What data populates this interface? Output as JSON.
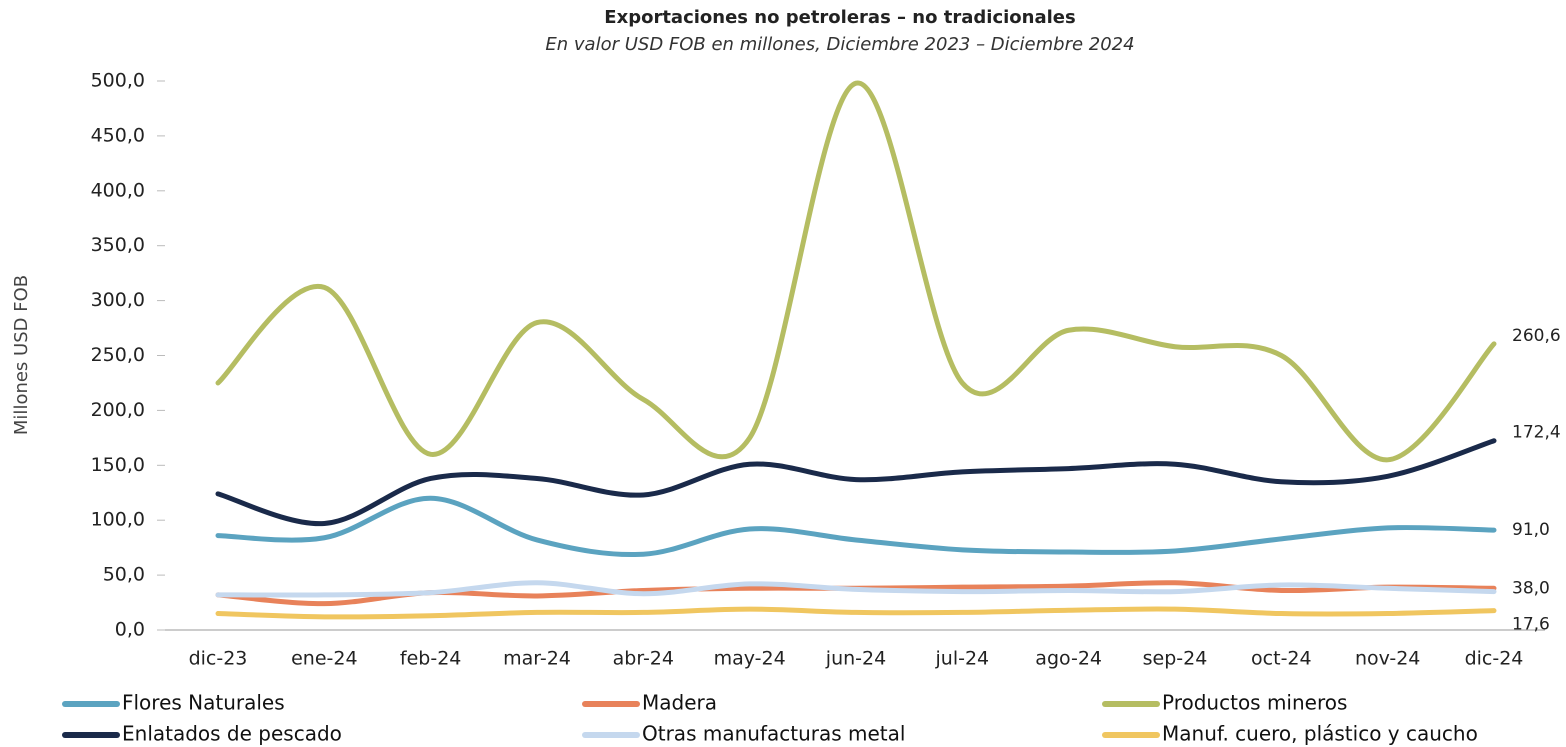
{
  "chart_data": {
    "type": "line",
    "title": "Exportaciones no petroleras – no tradicionales",
    "subtitle": "En valor USD FOB en millones, Diciembre 2023 – Diciembre 2024",
    "y_label": "Millones USD FOB",
    "categories": [
      "dic-23",
      "ene-24",
      "feb-24",
      "mar-24",
      "abr-24",
      "may-24",
      "jun-24",
      "jul-24",
      "ago-24",
      "sep-24",
      "oct-24",
      "nov-24",
      "dic-24"
    ],
    "series": [
      {
        "name": "Flores Naturales",
        "color": "#5ba3c0",
        "values": [
          86,
          84,
          120,
          82,
          69,
          92,
          82,
          73,
          71,
          72,
          83,
          93,
          91.0
        ],
        "value_labels": [
          null,
          null,
          null,
          null,
          null,
          null,
          null,
          null,
          null,
          null,
          null,
          null,
          "91,0"
        ]
      },
      {
        "name": "Madera",
        "color": "#e8825a",
        "values": [
          32,
          24,
          34,
          31,
          36,
          38,
          38,
          39,
          40,
          43,
          36,
          39,
          38.0
        ],
        "value_labels": [
          null,
          null,
          null,
          null,
          null,
          null,
          null,
          null,
          null,
          null,
          null,
          null,
          "38,0"
        ]
      },
      {
        "name": "Productos mineros",
        "color": "#b5bd62",
        "values": [
          225,
          312,
          160,
          280,
          210,
          175,
          498,
          225,
          273,
          258,
          250,
          155,
          260.6
        ],
        "value_labels": [
          null,
          null,
          null,
          null,
          null,
          null,
          null,
          null,
          null,
          null,
          null,
          null,
          "260,6"
        ]
      },
      {
        "name": "Enlatados de pescado",
        "color": "#1a2a4a",
        "values": [
          124,
          97,
          138,
          138,
          123,
          151,
          137,
          144,
          147,
          151,
          135,
          140,
          172.4
        ],
        "value_labels": [
          null,
          null,
          null,
          null,
          null,
          null,
          null,
          null,
          null,
          null,
          null,
          null,
          "172,4"
        ]
      },
      {
        "name": "Otras manufacturas metal",
        "color": "#c5d8ee",
        "values": [
          32,
          32,
          34,
          43,
          33,
          42,
          37,
          35,
          36,
          35,
          41,
          38,
          35
        ]
      },
      {
        "name": "Manuf. cuero, plástico y caucho",
        "color": "#f0c660",
        "values": [
          15,
          12,
          13,
          16,
          16,
          19,
          16,
          16,
          18,
          19,
          15,
          15,
          17.6
        ],
        "value_labels": [
          null,
          null,
          null,
          null,
          null,
          null,
          null,
          null,
          null,
          null,
          null,
          null,
          "17,6"
        ]
      }
    ],
    "ylim": [
      0,
      500
    ],
    "yticks": [
      {
        "value": 0,
        "label": "0,0"
      },
      {
        "value": 50,
        "label": "50,0"
      },
      {
        "value": 100,
        "label": "100,0"
      },
      {
        "value": 150,
        "label": "150,0"
      },
      {
        "value": 200,
        "label": "200,0"
      },
      {
        "value": 250,
        "label": "250,0"
      },
      {
        "value": 300,
        "label": "300,0"
      },
      {
        "value": 350,
        "label": "350,0"
      },
      {
        "value": 400,
        "label": "400,0"
      },
      {
        "value": 450,
        "label": "450,0"
      },
      {
        "value": 500,
        "label": "500,0"
      }
    ],
    "legend": "bottom"
  }
}
